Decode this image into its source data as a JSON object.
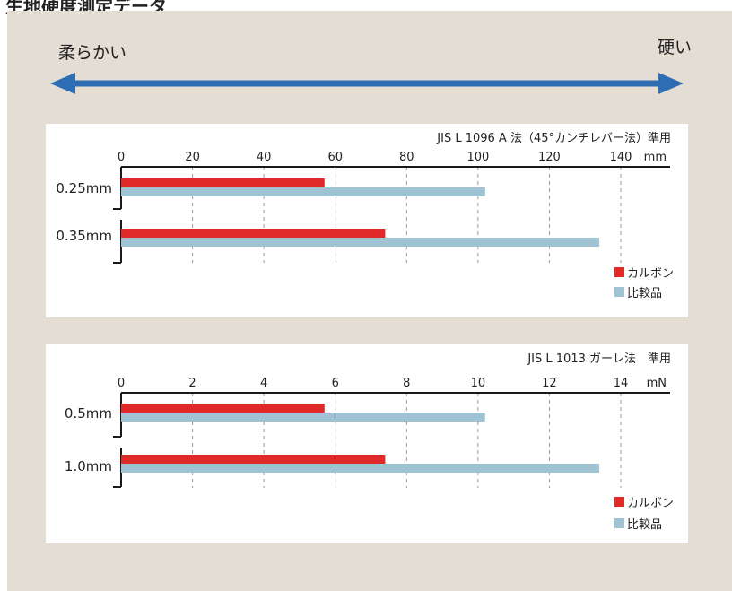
{
  "page_title": "生地硬度測定データ",
  "scale": {
    "soft_label": "柔らかい",
    "hard_label": "硬い",
    "arrow_color": "#2e6db4"
  },
  "colors": {
    "background": "#e3ddd3",
    "carbon": "#e02a2a",
    "comparison": "#9fc3d3"
  },
  "chart_data": [
    {
      "type": "bar",
      "orientation": "horizontal",
      "title": "",
      "note": "JIS L 1096 A 法（45°カンチレバー法）準用",
      "unit": "mm",
      "categories": [
        "0.25mm",
        "0.35mm"
      ],
      "ticks": [
        "0",
        "20",
        "40",
        "60",
        "80",
        "100",
        "120",
        "140"
      ],
      "xlim": [
        0,
        140
      ],
      "grid": true,
      "legend_position": "bottom-right",
      "series": [
        {
          "name": "カルボン",
          "color": "#e02a2a",
          "values": [
            57,
            74
          ]
        },
        {
          "name": "比較品",
          "color": "#9fc3d3",
          "values": [
            102,
            134
          ]
        }
      ]
    },
    {
      "type": "bar",
      "orientation": "horizontal",
      "title": "",
      "note": "JIS L 1013 ガーレ法　準用",
      "unit": "mN",
      "categories": [
        "0.5mm",
        "1.0mm"
      ],
      "ticks": [
        "0",
        "2",
        "4",
        "6",
        "8",
        "10",
        "12",
        "14"
      ],
      "xlim": [
        0,
        14
      ],
      "grid": true,
      "legend_position": "bottom-right",
      "series": [
        {
          "name": "カルボン",
          "color": "#e02a2a",
          "values": [
            5.7,
            7.4
          ]
        },
        {
          "name": "比較品",
          "color": "#9fc3d3",
          "values": [
            10.2,
            13.4
          ]
        }
      ]
    }
  ]
}
